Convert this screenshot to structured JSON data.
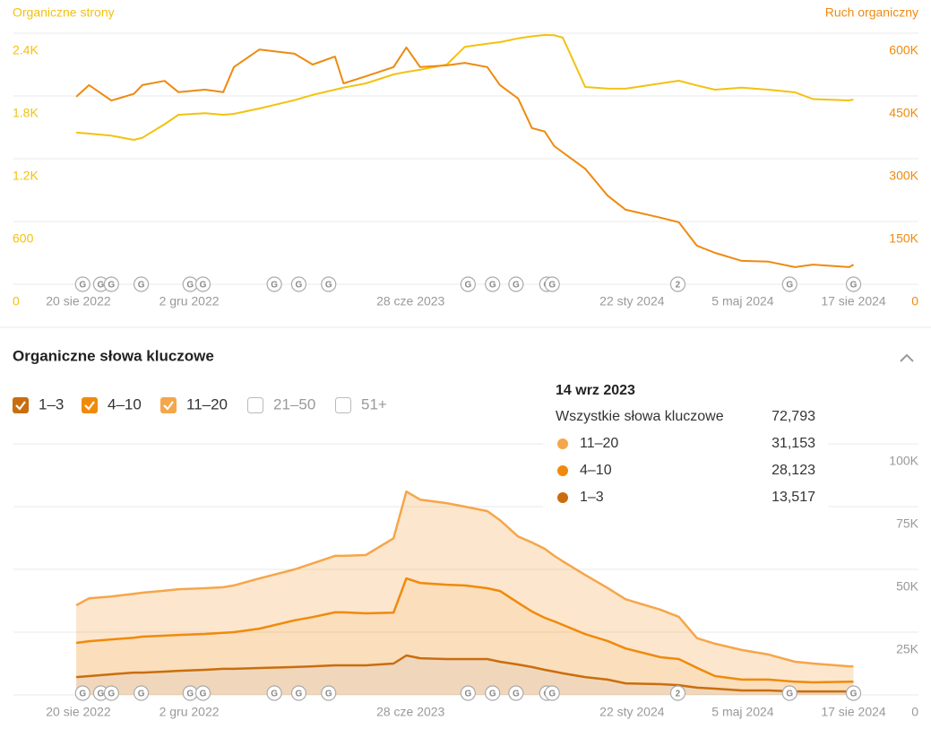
{
  "markers": [
    {
      "x": "2022-08-24",
      "label": "G"
    },
    {
      "x": "2022-09-10",
      "label": "G"
    },
    {
      "x": "2022-09-20",
      "label": "G"
    },
    {
      "x": "2022-10-18",
      "label": "G"
    },
    {
      "x": "2022-12-03",
      "label": "G"
    },
    {
      "x": "2022-12-15",
      "label": "G"
    },
    {
      "x": "2023-02-20",
      "label": "G"
    },
    {
      "x": "2023-03-15",
      "label": "G"
    },
    {
      "x": "2023-04-12",
      "label": "G"
    },
    {
      "x": "2023-08-21",
      "label": "G"
    },
    {
      "x": "2023-09-13",
      "label": "G"
    },
    {
      "x": "2023-10-05",
      "label": "G"
    },
    {
      "x": "2023-11-03",
      "label": "G"
    },
    {
      "x": "2023-11-08",
      "label": "G"
    },
    {
      "x": "2024-03-05",
      "label": "2"
    },
    {
      "x": "2024-06-18",
      "label": "G"
    },
    {
      "x": "2024-08-17",
      "label": "G"
    }
  ],
  "section_title": "Organiczne słowa kluczowe",
  "chart_data": [
    {
      "type": "line",
      "x": [
        "2022-08-18",
        "2022-08-30",
        "2022-09-20",
        "2022-10-11",
        "2022-10-19",
        "2022-11-09",
        "2022-11-22",
        "2022-12-17",
        "2023-01-03",
        "2023-01-13",
        "2023-02-06",
        "2023-03-11",
        "2023-03-28",
        "2023-04-18",
        "2023-04-26",
        "2023-05-17",
        "2023-06-12",
        "2023-06-24",
        "2023-07-07",
        "2023-08-01",
        "2023-08-18",
        "2023-09-08",
        "2023-09-20",
        "2023-10-07",
        "2023-10-20",
        "2023-11-01",
        "2023-11-10",
        "2023-11-18",
        "2023-12-09",
        "2023-12-30",
        "2024-01-16",
        "2024-02-18",
        "2024-03-06",
        "2024-03-23",
        "2024-04-09",
        "2024-05-04",
        "2024-05-29",
        "2024-06-23",
        "2024-07-10",
        "2024-08-13",
        "2024-08-17"
      ],
      "xlim": [
        "2022-06-20",
        "2024-10-17"
      ],
      "xticks": [
        {
          "value": "2022-08-20",
          "label": "20 sie 2022"
        },
        {
          "value": "2022-12-02",
          "label": "2 gru 2022"
        },
        {
          "value": "2023-06-28",
          "label": "28 cze 2023"
        },
        {
          "value": "2024-01-22",
          "label": "22 sty 2024"
        },
        {
          "value": "2024-05-05",
          "label": "5 maj 2024"
        },
        {
          "value": "2024-08-17",
          "label": "17 sie 2024"
        }
      ],
      "ylim": [
        0,
        2400
      ],
      "yticks": [
        0,
        600,
        {
          "value": 1200,
          "label": "1.2K"
        },
        {
          "value": 1800,
          "label": "1.8K"
        },
        {
          "value": 2400,
          "label": "2.4K"
        }
      ],
      "y2lim": [
        0,
        600000
      ],
      "y2ticks": [
        0,
        {
          "value": 150000,
          "label": "150K"
        },
        {
          "value": 300000,
          "label": "300K"
        },
        {
          "value": 450000,
          "label": "450K"
        },
        {
          "value": 600000,
          "label": "600K"
        }
      ],
      "grid": true,
      "series": [
        {
          "name": "Organiczne strony",
          "color": "#f2c20f",
          "values": [
            1449,
            1440,
            1420,
            1380,
            1400,
            1530,
            1620,
            1635,
            1620,
            1629,
            1680,
            1760,
            1810,
            1860,
            1880,
            1920,
            2006,
            2030,
            2050,
            2100,
            2270,
            2300,
            2314,
            2350,
            2370,
            2383,
            2380,
            2357,
            1886,
            1870,
            1869,
            1920,
            1946,
            1900,
            1860,
            1880,
            1860,
            1834,
            1770,
            1757,
            1766
          ]
        },
        {
          "name": "Ruch organiczny",
          "color": "#ee8a10",
          "axis": "y2",
          "values": [
            448000,
            476000,
            439000,
            455000,
            476000,
            486000,
            459000,
            465000,
            459000,
            519000,
            561000,
            551000,
            525000,
            544000,
            480000,
            497000,
            519000,
            566000,
            519000,
            523000,
            529000,
            519000,
            476000,
            444000,
            373000,
            365000,
            330000,
            315000,
            276000,
            212000,
            178000,
            159000,
            148000,
            92000,
            75000,
            56000,
            54000,
            41000,
            47000,
            41000,
            47000
          ]
        }
      ]
    },
    {
      "type": "stacked_area",
      "x": [
        "2022-08-18",
        "2022-08-30",
        "2022-09-20",
        "2022-10-11",
        "2022-10-19",
        "2022-11-09",
        "2022-11-22",
        "2022-12-17",
        "2023-01-03",
        "2023-01-13",
        "2023-02-06",
        "2023-03-11",
        "2023-03-28",
        "2023-04-18",
        "2023-04-26",
        "2023-05-17",
        "2023-06-12",
        "2023-06-24",
        "2023-07-07",
        "2023-08-01",
        "2023-08-18",
        "2023-09-08",
        "2023-09-20",
        "2023-10-07",
        "2023-10-20",
        "2023-11-01",
        "2023-11-10",
        "2023-11-18",
        "2023-12-09",
        "2023-12-30",
        "2024-01-16",
        "2024-02-18",
        "2024-03-06",
        "2024-03-23",
        "2024-04-09",
        "2024-05-04",
        "2024-05-29",
        "2024-06-23",
        "2024-07-10",
        "2024-08-13",
        "2024-08-17"
      ],
      "xlim": [
        "2022-06-20",
        "2024-10-17"
      ],
      "xticks": [
        {
          "value": "2022-08-20",
          "label": "20 sie 2022"
        },
        {
          "value": "2022-12-02",
          "label": "2 gru 2022"
        },
        {
          "value": "2023-06-28",
          "label": "28 cze 2023"
        },
        {
          "value": "2024-01-22",
          "label": "22 sty 2024"
        },
        {
          "value": "2024-05-05",
          "label": "5 maj 2024"
        },
        {
          "value": "2024-08-17",
          "label": "17 sie 2024"
        }
      ],
      "ylim": [
        0,
        100000
      ],
      "yticks": [
        0,
        {
          "value": 25000,
          "label": "25K"
        },
        {
          "value": 50000,
          "label": "50K"
        },
        {
          "value": 75000,
          "label": "75K"
        },
        {
          "value": 100000,
          "label": "100K"
        }
      ],
      "y_axis_side": "right",
      "grid": true,
      "series": [
        {
          "name": "1–3",
          "color": "#c96e0e",
          "values": [
            7100,
            7500,
            8200,
            8900,
            8900,
            9300,
            9600,
            10000,
            10400,
            10400,
            10700,
            11100,
            11400,
            11800,
            11800,
            11800,
            12500,
            15700,
            14600,
            14300,
            14300,
            14300,
            13200,
            12100,
            11100,
            10000,
            9300,
            8600,
            7100,
            6100,
            4600,
            4300,
            3900,
            2900,
            2500,
            1800,
            1800,
            1400,
            1400,
            1400,
            1400
          ]
        },
        {
          "name": "4–10",
          "color": "#f08a0c",
          "values": [
            13600,
            13900,
            13900,
            13900,
            14300,
            14300,
            14300,
            14300,
            14300,
            14600,
            15700,
            18600,
            19600,
            21100,
            21100,
            20700,
            20300,
            30700,
            30000,
            29600,
            29300,
            28200,
            28200,
            24600,
            22100,
            20700,
            20000,
            19300,
            17100,
            15400,
            13900,
            10700,
            10400,
            7900,
            5000,
            4300,
            4300,
            3900,
            3600,
            3900,
            3900
          ]
        },
        {
          "name": "11–20",
          "color": "#f5a64a",
          "values": [
            15000,
            17100,
            17100,
            17500,
            17500,
            17900,
            18200,
            18200,
            18200,
            18600,
            20000,
            20300,
            21400,
            22500,
            22500,
            23200,
            29600,
            34600,
            33200,
            32500,
            31400,
            30700,
            28200,
            26400,
            27500,
            27500,
            26100,
            25300,
            23600,
            21100,
            19600,
            18900,
            16800,
            11800,
            12900,
            11800,
            10000,
            7900,
            7500,
            6100,
            6100
          ]
        }
      ],
      "hidden_series": [
        "21–50",
        "51+"
      ],
      "tooltip": {
        "date": "14 wrz 2023",
        "total_name": "Wszystkie słowa kluczowe",
        "total": "72,793",
        "values": [
          "31,153",
          "28,123",
          "13,517"
        ]
      }
    }
  ]
}
